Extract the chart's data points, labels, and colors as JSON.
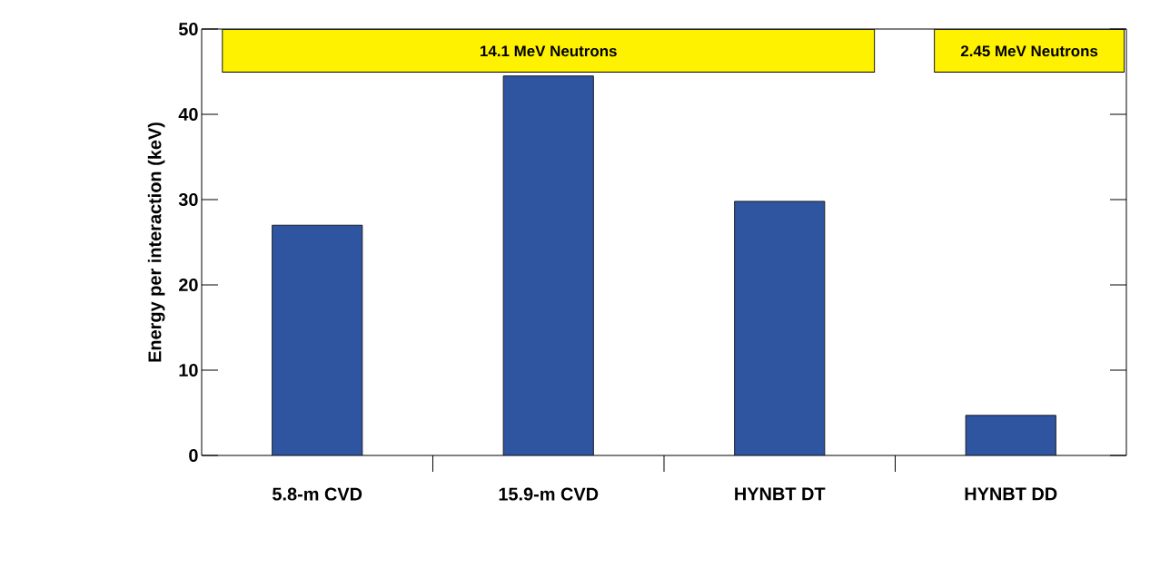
{
  "chart_data": {
    "type": "bar",
    "ylabel": "Energy per interaction (keV)",
    "categories": [
      "5.8-m CVD",
      "15.9-m CVD",
      "HYNBT DT",
      "HYNBT DD"
    ],
    "values": [
      27,
      44.5,
      29.8,
      4.7
    ],
    "color": "#2f54a0",
    "ylim": [
      0,
      50
    ],
    "yticks": [
      0,
      10,
      20,
      30,
      40,
      50
    ],
    "annotations": [
      "14.1 MeV Neutrons",
      "2.45 MeV Neutrons"
    ]
  }
}
